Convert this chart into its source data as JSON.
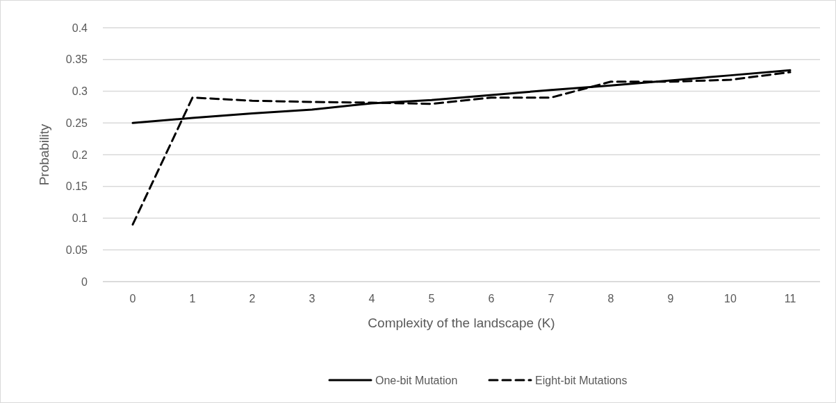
{
  "chart_data": {
    "type": "line",
    "xlabel": "Complexity of the landscape (K)",
    "ylabel": "Probability",
    "categories": [
      "0",
      "1",
      "2",
      "3",
      "4",
      "5",
      "6",
      "7",
      "8",
      "9",
      "10",
      "11"
    ],
    "ylim": [
      0,
      0.4
    ],
    "yticks": [
      0,
      0.05,
      0.1,
      0.15,
      0.2,
      0.25,
      0.3,
      0.35,
      0.4
    ],
    "grid": "y",
    "legend": "bottom",
    "series": [
      {
        "name": "One-bit Mutation",
        "color": "#000000",
        "line_style": "solid",
        "values": [
          0.25,
          0.258,
          0.265,
          0.271,
          0.281,
          0.286,
          0.294,
          0.302,
          0.309,
          0.317,
          0.325,
          0.333
        ]
      },
      {
        "name": "Eight-bit Mutations",
        "color": "#000000",
        "line_style": "dashed",
        "values": [
          0.09,
          0.29,
          0.285,
          0.283,
          0.282,
          0.28,
          0.29,
          0.29,
          0.315,
          0.315,
          0.318,
          0.33
        ]
      }
    ]
  }
}
